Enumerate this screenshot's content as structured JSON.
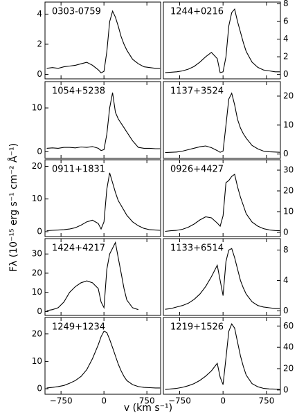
{
  "xlabel": "v (km s⁻¹)",
  "ylabel": "Fλ (10⁻¹⁵ erg s⁻¹ cm⁻² Å⁻¹)",
  "chart_data": [
    {
      "type": "line",
      "title": "0303-0759",
      "color": "#000000",
      "xlim": [
        -1030,
        990
      ],
      "ylim": [
        -0.3,
        4.8
      ],
      "yticks": [
        0,
        2,
        4
      ],
      "xticks": [
        {
          "value": -750,
          "label": "−750"
        },
        0,
        750
      ],
      "x": [
        -1000,
        -900,
        -800,
        -700,
        -600,
        -500,
        -400,
        -300,
        -200,
        -100,
        -50,
        0,
        50,
        100,
        150,
        200,
        250,
        300,
        350,
        400,
        500,
        600,
        700,
        800,
        900,
        980
      ],
      "values": [
        0.4,
        0.45,
        0.4,
        0.5,
        0.55,
        0.6,
        0.7,
        0.8,
        0.6,
        0.3,
        0.1,
        0.2,
        1.5,
        3.5,
        4.2,
        3.8,
        3.2,
        2.5,
        2.0,
        1.6,
        1.0,
        0.7,
        0.5,
        0.45,
        0.4,
        0.4
      ]
    },
    {
      "type": "line",
      "title": "1244+0216",
      "color": "#000000",
      "xlim": [
        -1030,
        990
      ],
      "ylim": [
        -0.5,
        8.2
      ],
      "yticks": [
        0,
        2,
        4,
        6,
        8
      ],
      "xticks": [
        {
          "value": -750,
          "label": "−750"
        },
        0,
        750
      ],
      "x": [
        -1000,
        -900,
        -800,
        -700,
        -600,
        -500,
        -400,
        -300,
        -200,
        -100,
        -50,
        0,
        50,
        100,
        150,
        200,
        250,
        300,
        350,
        400,
        500,
        600,
        700,
        800,
        900,
        980
      ],
      "values": [
        0.2,
        0.25,
        0.3,
        0.4,
        0.6,
        0.9,
        1.4,
        2.0,
        2.5,
        1.8,
        0.2,
        0.3,
        2.0,
        5.5,
        7.0,
        7.4,
        6.0,
        4.8,
        3.6,
        2.6,
        1.4,
        0.8,
        0.5,
        0.4,
        0.3,
        0.3
      ]
    },
    {
      "type": "line",
      "title": "1054+5238",
      "color": "#000000",
      "xlim": [
        -1030,
        990
      ],
      "ylim": [
        -1.5,
        16
      ],
      "yticks": [
        0,
        10
      ],
      "xticks": [
        {
          "value": -750,
          "label": "−750"
        },
        0,
        750
      ],
      "x": [
        -1000,
        -900,
        -800,
        -700,
        -600,
        -500,
        -400,
        -300,
        -200,
        -100,
        -50,
        0,
        50,
        100,
        150,
        200,
        250,
        300,
        350,
        400,
        500,
        600,
        700,
        800,
        900,
        980
      ],
      "values": [
        0.8,
        0.9,
        0.8,
        1.0,
        1.0,
        0.9,
        1.1,
        1.0,
        1.2,
        0.8,
        0.3,
        0.5,
        4,
        10,
        13.5,
        9,
        7.5,
        6.5,
        5.5,
        4.5,
        2.5,
        1.0,
        0.8,
        0.8,
        0.7,
        0.7
      ]
    },
    {
      "type": "line",
      "title": "1137+3524",
      "color": "#000000",
      "xlim": [
        -1030,
        990
      ],
      "ylim": [
        -1.5,
        25
      ],
      "yticks": [
        0,
        10,
        20
      ],
      "xticks": [
        {
          "value": -750,
          "label": "−750"
        },
        0,
        750
      ],
      "x": [
        -1000,
        -900,
        -800,
        -700,
        -600,
        -500,
        -400,
        -300,
        -200,
        -100,
        -50,
        0,
        50,
        100,
        150,
        200,
        250,
        300,
        350,
        400,
        500,
        600,
        700,
        800,
        900,
        980
      ],
      "values": [
        0.5,
        0.6,
        0.7,
        1.0,
        1.5,
        2.0,
        2.5,
        2.8,
        2.2,
        1.2,
        0.6,
        1.0,
        10,
        19,
        21,
        17,
        12,
        9,
        7,
        5.5,
        3,
        1.8,
        1.0,
        0.8,
        0.7,
        0.6
      ]
    },
    {
      "type": "line",
      "title": "0911+1831",
      "color": "#000000",
      "xlim": [
        -1030,
        990
      ],
      "ylim": [
        -1.5,
        22
      ],
      "yticks": [
        0,
        10,
        20
      ],
      "xticks": [
        {
          "value": -750,
          "label": "−750"
        },
        0,
        750
      ],
      "x": [
        -1000,
        -900,
        -800,
        -700,
        -600,
        -500,
        -400,
        -300,
        -200,
        -100,
        -50,
        0,
        50,
        100,
        150,
        200,
        250,
        300,
        350,
        400,
        500,
        600,
        700,
        800,
        900,
        980
      ],
      "values": [
        0.3,
        0.4,
        0.5,
        0.6,
        0.8,
        1.2,
        2,
        3,
        3.5,
        2.5,
        0.8,
        3,
        13,
        18,
        15,
        12,
        9.5,
        8,
        6.5,
        5,
        3,
        1.8,
        1.0,
        0.6,
        0.5,
        0.4
      ]
    },
    {
      "type": "line",
      "title": "0926+4427",
      "color": "#000000",
      "xlim": [
        -1030,
        990
      ],
      "ylim": [
        -2,
        35
      ],
      "yticks": [
        0,
        10,
        20,
        30
      ],
      "xticks": [
        {
          "value": -750,
          "label": "−750"
        },
        0,
        750
      ],
      "x": [
        -1000,
        -900,
        -800,
        -700,
        -600,
        -500,
        -400,
        -300,
        -200,
        -100,
        -50,
        0,
        50,
        100,
        150,
        200,
        250,
        300,
        350,
        400,
        500,
        600,
        700,
        800,
        900,
        980
      ],
      "values": [
        0.5,
        0.8,
        1.0,
        1.5,
        2.5,
        4,
        6,
        7.5,
        7,
        4.5,
        3,
        8,
        24,
        25,
        27,
        28,
        22,
        17,
        13,
        9,
        5,
        3,
        1.8,
        1.2,
        0.9,
        0.8
      ]
    },
    {
      "type": "line",
      "title": "1424+4217",
      "color": "#000000",
      "xlim": [
        -1030,
        990
      ],
      "ylim": [
        -2,
        38
      ],
      "yticks": [
        0,
        10,
        20,
        30
      ],
      "xticks": [
        {
          "value": -750,
          "label": "−750"
        },
        0,
        750
      ],
      "x": [
        -1000,
        -900,
        -800,
        -700,
        -600,
        -500,
        -400,
        -300,
        -200,
        -100,
        -50,
        0,
        50,
        100,
        150,
        200,
        250,
        300,
        350,
        400,
        500,
        600,
        700,
        800,
        900,
        980
      ],
      "values": [
        0.5,
        1,
        2,
        5,
        10,
        13,
        15,
        16,
        15,
        12,
        5,
        2,
        22,
        30,
        33,
        36,
        28,
        20,
        12,
        6,
        2,
        1,
        null,
        null,
        null,
        null
      ]
    },
    {
      "type": "line",
      "title": "1133+6514",
      "color": "#000000",
      "xlim": [
        -1030,
        990
      ],
      "ylim": [
        -0.6,
        9.5
      ],
      "yticks": [
        0,
        4,
        8
      ],
      "xticks": [
        {
          "value": -750,
          "label": "−750"
        },
        0,
        750
      ],
      "x": [
        -1000,
        -900,
        -800,
        -700,
        -600,
        -500,
        -400,
        -300,
        -200,
        -100,
        -50,
        0,
        50,
        100,
        150,
        200,
        250,
        300,
        350,
        400,
        500,
        600,
        700,
        800,
        900,
        980
      ],
      "values": [
        0.2,
        0.3,
        0.5,
        0.7,
        1.0,
        1.5,
        2.2,
        3.2,
        4.5,
        6.0,
        4.0,
        2.0,
        6.5,
        8.0,
        8.2,
        7.0,
        5.5,
        4.0,
        3.0,
        2.2,
        1.2,
        0.7,
        0.5,
        0.4,
        0.3,
        0.3
      ]
    },
    {
      "type": "line",
      "title": "1249+1234",
      "color": "#000000",
      "xlim": [
        -1030,
        990
      ],
      "ylim": [
        -2,
        26
      ],
      "yticks": [
        0,
        10,
        20
      ],
      "xticks": [
        {
          "value": -750,
          "label": "−750"
        },
        0,
        750
      ],
      "x": [
        -1000,
        -900,
        -800,
        -700,
        -600,
        -500,
        -400,
        -300,
        -200,
        -100,
        -50,
        0,
        50,
        100,
        150,
        200,
        250,
        300,
        350,
        400,
        500,
        600,
        700,
        800,
        900,
        980
      ],
      "values": [
        0.3,
        0.5,
        0.8,
        1.2,
        2,
        3,
        4.5,
        7,
        11,
        16,
        19,
        21,
        20.5,
        18,
        15,
        12,
        9,
        6.5,
        4.5,
        3,
        1.5,
        0.8,
        0.5,
        0.4,
        0.3,
        0.3
      ]
    },
    {
      "type": "line",
      "title": "1219+1526",
      "color": "#000000",
      "xlim": [
        -1030,
        990
      ],
      "ylim": [
        -4,
        68
      ],
      "yticks": [
        0,
        20,
        40,
        60
      ],
      "xticks": [
        {
          "value": -750,
          "label": "−750"
        },
        0,
        750
      ],
      "x": [
        -1000,
        -900,
        -800,
        -700,
        -600,
        -500,
        -400,
        -300,
        -200,
        -100,
        -50,
        0,
        50,
        100,
        150,
        200,
        250,
        300,
        350,
        400,
        500,
        600,
        700,
        800,
        900,
        980
      ],
      "values": [
        0.5,
        1,
        1.5,
        2.5,
        4,
        6,
        9,
        13,
        18,
        25,
        12,
        5,
        30,
        55,
        62,
        58,
        45,
        32,
        22,
        14,
        6,
        3,
        1.5,
        1,
        0.8,
        0.6
      ]
    }
  ]
}
